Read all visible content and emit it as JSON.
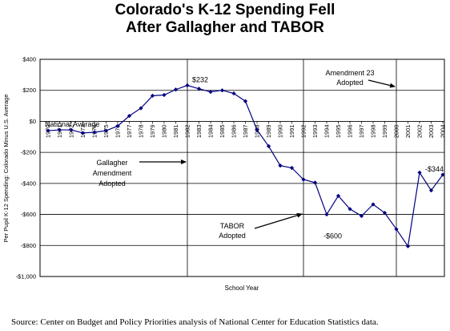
{
  "title": {
    "line1": "Colorado's K-12 Spending Fell",
    "line2": "After Gallagher and TABOR"
  },
  "source": "Source:  Center on Budget and Policy Priorities analysis of National Center for Education Statistics data.",
  "chart_data": {
    "type": "line",
    "title": "Colorado's K-12 Spending Fell After Gallagher and TABOR",
    "xlabel": "School Year",
    "ylabel": "Per Pupil K-12 Spending: Colorado Minus U.S. Average",
    "x_tick_labels": [
      "1970",
      "1971",
      "1972",
      "1973",
      "1974",
      "1975",
      "1976",
      "1977",
      "1978",
      "1979",
      "1980",
      "1981",
      "1982",
      "1983",
      "1984",
      "1985",
      "1986",
      "1987",
      "1988",
      "1989",
      "1990",
      "1991",
      "1992",
      "1993",
      "1994",
      "1995",
      "1996",
      "1997",
      "1998",
      "1999",
      "2000",
      "2001",
      "2002",
      "2003",
      "2004"
    ],
    "y_ticks": [
      400,
      200,
      0,
      -200,
      -400,
      -600,
      -800,
      -1000
    ],
    "y_tick_labels": [
      "$400",
      "$200",
      "$0",
      "-$200",
      "-$400",
      "-$600",
      "-$800",
      "-$1,000"
    ],
    "ylim": [
      -1000,
      400
    ],
    "grid": "horizontal",
    "vertical_lines_at": [
      1982,
      1992,
      2000
    ],
    "series": [
      {
        "x": [
          1970,
          1971,
          1972,
          1973,
          1974,
          1975,
          1976,
          1977,
          1978,
          1979,
          1980,
          1981,
          1982,
          1983,
          1984,
          1985,
          1986,
          1987,
          1988,
          1989,
          1990,
          1991,
          1992,
          1993,
          1994,
          1995,
          1996,
          1997,
          1998,
          1999,
          2000,
          2001,
          2002,
          2003,
          2004
        ],
        "values": [
          -60,
          -55,
          -55,
          -75,
          -70,
          -60,
          -30,
          35,
          85,
          165,
          170,
          205,
          232,
          210,
          190,
          200,
          180,
          130,
          -55,
          -160,
          -285,
          -300,
          -375,
          -395,
          -600,
          -480,
          -565,
          -610,
          -535,
          -590,
          -695,
          -805,
          -330,
          -445,
          -344
        ],
        "color": "#000080"
      }
    ],
    "reference_line": {
      "label": "National Average",
      "value": -60
    },
    "annotations": [
      {
        "text": "$232",
        "x": 1982,
        "y": 232
      },
      {
        "text": "-$600",
        "x": 1994,
        "y": -600
      },
      {
        "text": "-$344",
        "x": 2004,
        "y": -344
      },
      {
        "lines": [
          "Gallagher",
          "Amendment",
          "Adopted"
        ],
        "arrow_to_year": 1982
      },
      {
        "lines": [
          "TABOR",
          "Adopted"
        ],
        "arrow_to_year": 1992
      },
      {
        "lines": [
          "Amendment 23",
          "Adopted"
        ],
        "arrow_to_year": 2000
      }
    ]
  }
}
